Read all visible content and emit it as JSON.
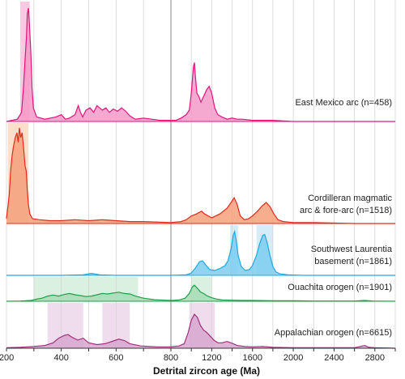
{
  "chart_data": {
    "type": "area",
    "xlabel": "Detrital zircon age (Ma)",
    "xticks": [
      200,
      400,
      600,
      800,
      1200,
      1600,
      2000,
      2400,
      2800
    ],
    "xdomain": [
      200,
      3000
    ],
    "axis_break": 800,
    "grid": true,
    "series": [
      {
        "name": "East Mexico arc (n=458)",
        "label_lines": [
          "East Mexico arc (n=458)"
        ],
        "color": "#e0147c",
        "fill": "#f49ac8",
        "highlight_ranges": [
          [
            250,
            285
          ]
        ],
        "highlight_color": "#f7c1dc",
        "points": [
          [
            200,
            0
          ],
          [
            220,
            0.01
          ],
          [
            240,
            0.02
          ],
          [
            255,
            0.08
          ],
          [
            262,
            0.3
          ],
          [
            268,
            0.55
          ],
          [
            273,
            0.75
          ],
          [
            276,
            0.95
          ],
          [
            280,
            1.0
          ],
          [
            284,
            0.85
          ],
          [
            289,
            0.6
          ],
          [
            293,
            0.3
          ],
          [
            298,
            0.12
          ],
          [
            310,
            0.04
          ],
          [
            340,
            0.02
          ],
          [
            380,
            0.04
          ],
          [
            400,
            0.06
          ],
          [
            415,
            0.02
          ],
          [
            430,
            0.03
          ],
          [
            450,
            0.06
          ],
          [
            462,
            0.14
          ],
          [
            470,
            0.08
          ],
          [
            478,
            0.04
          ],
          [
            490,
            0.1
          ],
          [
            505,
            0.12
          ],
          [
            518,
            0.08
          ],
          [
            530,
            0.14
          ],
          [
            540,
            0.12
          ],
          [
            550,
            0.1
          ],
          [
            563,
            0.12
          ],
          [
            575,
            0.08
          ],
          [
            590,
            0.11
          ],
          [
            605,
            0.09
          ],
          [
            620,
            0.12
          ],
          [
            635,
            0.09
          ],
          [
            650,
            0.05
          ],
          [
            670,
            0.02
          ],
          [
            700,
            0.03
          ],
          [
            730,
            0.02
          ],
          [
            760,
            0.01
          ],
          [
            800,
            0.01
          ],
          [
            850,
            0.01
          ],
          [
            900,
            0.03
          ],
          [
            950,
            0.06
          ],
          [
            980,
            0.1
          ],
          [
            1000,
            0.25
          ],
          [
            1020,
            0.48
          ],
          [
            1030,
            0.52
          ],
          [
            1040,
            0.4
          ],
          [
            1055,
            0.25
          ],
          [
            1075,
            0.22
          ],
          [
            1095,
            0.17
          ],
          [
            1120,
            0.22
          ],
          [
            1150,
            0.28
          ],
          [
            1175,
            0.31
          ],
          [
            1200,
            0.25
          ],
          [
            1230,
            0.12
          ],
          [
            1260,
            0.06
          ],
          [
            1300,
            0.04
          ],
          [
            1350,
            0.02
          ],
          [
            1400,
            0.03
          ],
          [
            1450,
            0.02
          ],
          [
            1500,
            0.02
          ],
          [
            1600,
            0.01
          ],
          [
            1800,
            0.01
          ],
          [
            2000,
            0.0
          ],
          [
            2400,
            0.0
          ],
          [
            3000,
            0.0
          ]
        ]
      },
      {
        "name": "Cordilleran magmatic arc & fore-arc (n=1518)",
        "label_lines": [
          "Cordilleran magmatic",
          "arc & fore-arc (n=1518)"
        ],
        "color": "#e02a1a",
        "fill": "#f5a07a",
        "highlight_ranges": [
          [
            205,
            280
          ]
        ],
        "highlight_color": "#fbd9c2",
        "points": [
          [
            200,
            0.05
          ],
          [
            210,
            0.3
          ],
          [
            215,
            0.55
          ],
          [
            220,
            0.7
          ],
          [
            225,
            0.8
          ],
          [
            232,
            0.9
          ],
          [
            238,
            0.95
          ],
          [
            243,
            0.85
          ],
          [
            247,
            1.0
          ],
          [
            252,
            0.9
          ],
          [
            257,
            0.95
          ],
          [
            262,
            0.8
          ],
          [
            268,
            0.6
          ],
          [
            272,
            0.55
          ],
          [
            276,
            0.35
          ],
          [
            280,
            0.2
          ],
          [
            285,
            0.1
          ],
          [
            295,
            0.05
          ],
          [
            320,
            0.04
          ],
          [
            360,
            0.03
          ],
          [
            400,
            0.03
          ],
          [
            450,
            0.04
          ],
          [
            500,
            0.03
          ],
          [
            550,
            0.04
          ],
          [
            600,
            0.03
          ],
          [
            650,
            0.02
          ],
          [
            700,
            0.02
          ],
          [
            800,
            0.01
          ],
          [
            900,
            0.02
          ],
          [
            950,
            0.04
          ],
          [
            1000,
            0.08
          ],
          [
            1050,
            0.1
          ],
          [
            1100,
            0.13
          ],
          [
            1130,
            0.1
          ],
          [
            1200,
            0.06
          ],
          [
            1280,
            0.1
          ],
          [
            1350,
            0.16
          ],
          [
            1390,
            0.22
          ],
          [
            1420,
            0.27
          ],
          [
            1450,
            0.2
          ],
          [
            1480,
            0.08
          ],
          [
            1520,
            0.04
          ],
          [
            1560,
            0.05
          ],
          [
            1600,
            0.08
          ],
          [
            1650,
            0.13
          ],
          [
            1700,
            0.19
          ],
          [
            1735,
            0.22
          ],
          [
            1770,
            0.18
          ],
          [
            1810,
            0.1
          ],
          [
            1850,
            0.04
          ],
          [
            1900,
            0.02
          ],
          [
            2000,
            0.01
          ],
          [
            2200,
            0.01
          ],
          [
            2600,
            0.0
          ],
          [
            3000,
            0.0
          ]
        ]
      },
      {
        "name": "Southwest Laurentia basement (n=1861)",
        "label_lines": [
          "Southwest Laurentia",
          "basement (n=1861)"
        ],
        "color": "#1fa8e0",
        "fill": "#7ccdf0",
        "highlight_ranges": [
          [
            1380,
            1460
          ],
          [
            1640,
            1800
          ]
        ],
        "highlight_color": "#cdeaf8",
        "points": [
          [
            200,
            0
          ],
          [
            400,
            0
          ],
          [
            480,
            0.01
          ],
          [
            510,
            0.04
          ],
          [
            540,
            0.01
          ],
          [
            600,
            0
          ],
          [
            800,
            0
          ],
          [
            950,
            0.01
          ],
          [
            1000,
            0.05
          ],
          [
            1040,
            0.15
          ],
          [
            1080,
            0.28
          ],
          [
            1110,
            0.3
          ],
          [
            1140,
            0.22
          ],
          [
            1180,
            0.12
          ],
          [
            1230,
            0.1
          ],
          [
            1280,
            0.14
          ],
          [
            1330,
            0.2
          ],
          [
            1360,
            0.3
          ],
          [
            1390,
            0.55
          ],
          [
            1410,
            0.82
          ],
          [
            1425,
            0.9
          ],
          [
            1440,
            0.72
          ],
          [
            1460,
            0.4
          ],
          [
            1490,
            0.18
          ],
          [
            1530,
            0.1
          ],
          [
            1570,
            0.12
          ],
          [
            1600,
            0.2
          ],
          [
            1640,
            0.42
          ],
          [
            1670,
            0.65
          ],
          [
            1700,
            0.82
          ],
          [
            1720,
            0.84
          ],
          [
            1740,
            0.7
          ],
          [
            1770,
            0.42
          ],
          [
            1800,
            0.18
          ],
          [
            1830,
            0.07
          ],
          [
            1870,
            0.03
          ],
          [
            1950,
            0.01
          ],
          [
            2100,
            0
          ],
          [
            3000,
            0
          ]
        ]
      },
      {
        "name": "Ouachita orogen (n=1901)",
        "label_lines": [
          "Ouachita orogen (n=1901)"
        ],
        "color": "#1f9e4a",
        "fill": "#a6dcb5",
        "highlight_ranges": [
          [
            300,
            680
          ],
          [
            1000,
            1200
          ]
        ],
        "highlight_color": "#d3efdc",
        "points": [
          [
            200,
            0
          ],
          [
            250,
            0.01
          ],
          [
            290,
            0.03
          ],
          [
            310,
            0.08
          ],
          [
            330,
            0.12
          ],
          [
            350,
            0.2
          ],
          [
            370,
            0.24
          ],
          [
            390,
            0.2
          ],
          [
            410,
            0.26
          ],
          [
            430,
            0.3
          ],
          [
            450,
            0.25
          ],
          [
            470,
            0.22
          ],
          [
            490,
            0.18
          ],
          [
            510,
            0.2
          ],
          [
            530,
            0.25
          ],
          [
            550,
            0.3
          ],
          [
            570,
            0.28
          ],
          [
            590,
            0.32
          ],
          [
            610,
            0.35
          ],
          [
            630,
            0.3
          ],
          [
            650,
            0.28
          ],
          [
            670,
            0.2
          ],
          [
            700,
            0.12
          ],
          [
            740,
            0.06
          ],
          [
            780,
            0.04
          ],
          [
            820,
            0.03
          ],
          [
            880,
            0.05
          ],
          [
            940,
            0.12
          ],
          [
            980,
            0.3
          ],
          [
            1010,
            0.55
          ],
          [
            1030,
            0.62
          ],
          [
            1060,
            0.5
          ],
          [
            1090,
            0.36
          ],
          [
            1120,
            0.3
          ],
          [
            1150,
            0.22
          ],
          [
            1190,
            0.15
          ],
          [
            1240,
            0.09
          ],
          [
            1300,
            0.05
          ],
          [
            1400,
            0.04
          ],
          [
            1500,
            0.03
          ],
          [
            1600,
            0.03
          ],
          [
            1800,
            0.02
          ],
          [
            2000,
            0.02
          ],
          [
            2200,
            0.01
          ],
          [
            2600,
            0.01
          ],
          [
            2700,
            0.03
          ],
          [
            2780,
            0.01
          ],
          [
            3000,
            0
          ]
        ]
      },
      {
        "name": "Appalachian orogen (n=6615)",
        "label_lines": [
          "Appalachian orogen (n=6615)"
        ],
        "color": "#a0307e",
        "fill": "#d7a6cf",
        "highlight_ranges": [
          [
            350,
            480
          ],
          [
            550,
            650
          ],
          [
            980,
            1230
          ]
        ],
        "highlight_color": "#ecd7ea",
        "points": [
          [
            200,
            0.01
          ],
          [
            250,
            0.02
          ],
          [
            300,
            0.04
          ],
          [
            340,
            0.06
          ],
          [
            370,
            0.12
          ],
          [
            390,
            0.22
          ],
          [
            410,
            0.28
          ],
          [
            425,
            0.3
          ],
          [
            440,
            0.24
          ],
          [
            460,
            0.18
          ],
          [
            480,
            0.22
          ],
          [
            500,
            0.12
          ],
          [
            530,
            0.08
          ],
          [
            560,
            0.1
          ],
          [
            590,
            0.16
          ],
          [
            610,
            0.2
          ],
          [
            630,
            0.17
          ],
          [
            650,
            0.1
          ],
          [
            690,
            0.05
          ],
          [
            750,
            0.03
          ],
          [
            800,
            0.03
          ],
          [
            880,
            0.05
          ],
          [
            930,
            0.1
          ],
          [
            970,
            0.35
          ],
          [
            1000,
            0.62
          ],
          [
            1030,
            0.75
          ],
          [
            1060,
            0.68
          ],
          [
            1090,
            0.5
          ],
          [
            1120,
            0.4
          ],
          [
            1150,
            0.35
          ],
          [
            1180,
            0.28
          ],
          [
            1220,
            0.18
          ],
          [
            1260,
            0.12
          ],
          [
            1300,
            0.12
          ],
          [
            1350,
            0.15
          ],
          [
            1400,
            0.11
          ],
          [
            1450,
            0.06
          ],
          [
            1520,
            0.04
          ],
          [
            1600,
            0.03
          ],
          [
            1700,
            0.04
          ],
          [
            1800,
            0.02
          ],
          [
            2000,
            0.01
          ],
          [
            2600,
            0.01
          ],
          [
            2700,
            0.06
          ],
          [
            2740,
            0.02
          ],
          [
            2800,
            0.01
          ],
          [
            3000,
            0
          ]
        ]
      }
    ]
  }
}
